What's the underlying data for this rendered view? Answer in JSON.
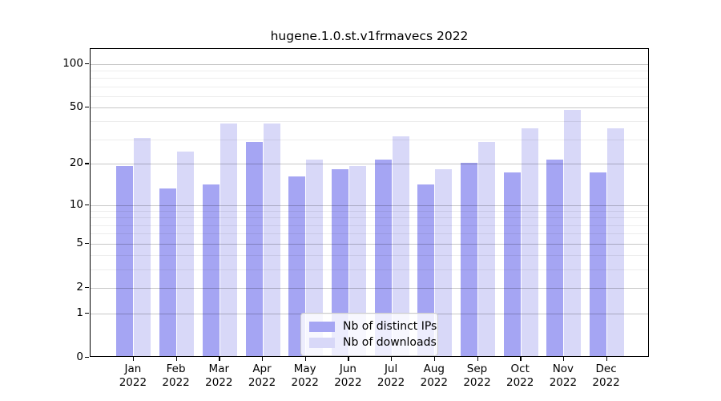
{
  "title": "hugene.1.0.st.v1frmavecs 2022",
  "legend": {
    "items": [
      {
        "label": "Nb of distinct IPs",
        "color": "#a5a5f3"
      },
      {
        "label": "Nb of downloads",
        "color": "#d8d8f8"
      }
    ]
  },
  "axes": {
    "y_tick_labels": [
      "100",
      "50",
      "20",
      "10",
      "5",
      "2",
      "1",
      "0"
    ],
    "x_tick_labels_line1": [
      "Jan",
      "Feb",
      "Mar",
      "Apr",
      "May",
      "Jun",
      "Jul",
      "Aug",
      "Sep",
      "Oct",
      "Nov",
      "Dec"
    ],
    "x_tick_labels_line2": [
      "2022",
      "2022",
      "2022",
      "2022",
      "2022",
      "2022",
      "2022",
      "2022",
      "2022",
      "2022",
      "2022",
      "2022"
    ]
  },
  "chart_data": {
    "type": "bar",
    "title": "hugene.1.0.st.v1frmavecs 2022",
    "categories": [
      "Jan 2022",
      "Feb 2022",
      "Mar 2022",
      "Apr 2022",
      "May 2022",
      "Jun 2022",
      "Jul 2022",
      "Aug 2022",
      "Sep 2022",
      "Oct 2022",
      "Nov 2022",
      "Dec 2022"
    ],
    "series": [
      {
        "name": "Nb of distinct IPs",
        "color": "#a5a5f3",
        "values": [
          19,
          13,
          14,
          28,
          16,
          18,
          21,
          14,
          20,
          17,
          21,
          17
        ]
      },
      {
        "name": "Nb of downloads",
        "color": "#d8d8f8",
        "values": [
          30,
          24,
          38,
          38,
          21,
          19,
          31,
          18,
          28,
          35,
          47,
          35
        ]
      }
    ],
    "xlabel": "",
    "ylabel": "",
    "yscale": "log10(value+1)",
    "ylim": [
      0,
      127
    ],
    "yticks_major": [
      0,
      1,
      2,
      5,
      10,
      20,
      50,
      100
    ],
    "yticks_minor": [
      3,
      4,
      6,
      7,
      8,
      9,
      30,
      40,
      60,
      70,
      80,
      90
    ],
    "grid": true,
    "legend_position": "lower center inside plot"
  }
}
